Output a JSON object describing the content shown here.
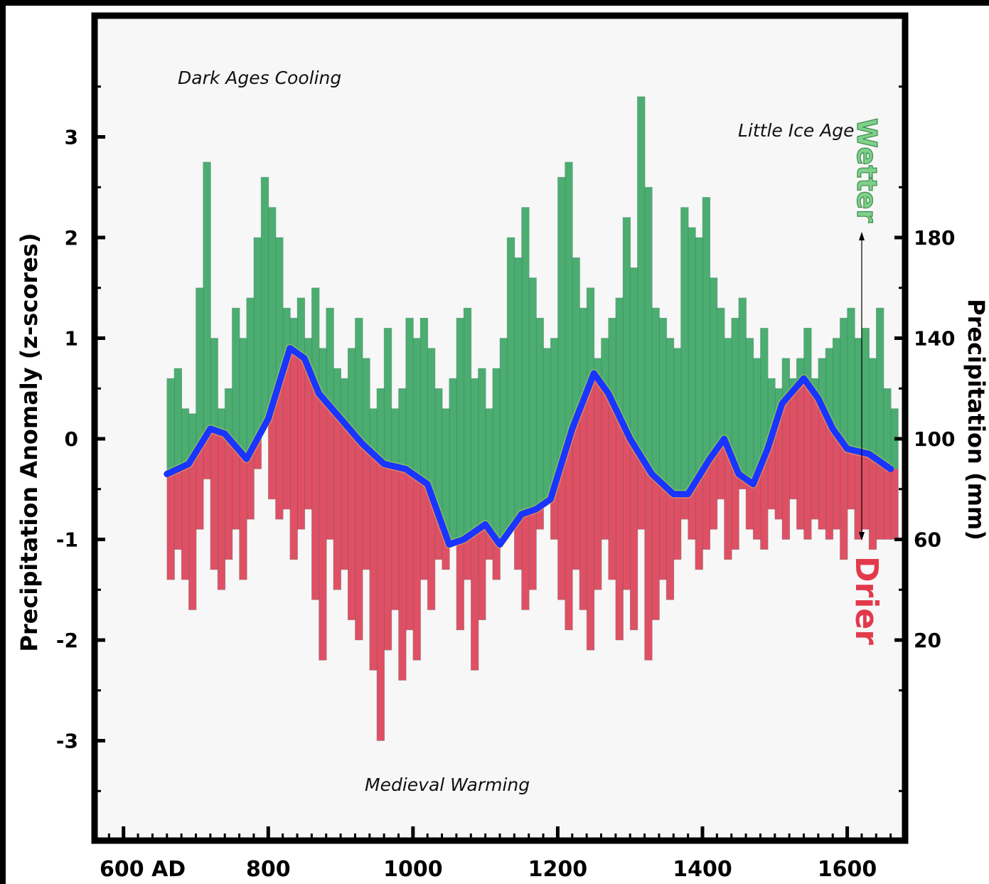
{
  "chart_data": {
    "type": "bar",
    "title": "",
    "y_left_label": "Precipitation Anomaly (z-scores)",
    "y_right_label": "Precipitation (mm)",
    "ylim": [
      -4,
      4
    ],
    "xlim": [
      560,
      1680
    ],
    "x_ticks": [
      600,
      800,
      1000,
      1200,
      1400,
      1600
    ],
    "x_tick_labels": [
      "600  AD",
      "800",
      "1000",
      "1200",
      "1400",
      "1600"
    ],
    "y_ticks": [
      3,
      2,
      1,
      0,
      -1,
      -2,
      -3
    ],
    "y_tick_labels": [
      "3",
      "2",
      "1",
      "0",
      "-1",
      "-2",
      "-3"
    ],
    "y_right_ticks": [
      2,
      1,
      0,
      -1,
      -2
    ],
    "y_right_tick_labels": [
      "180",
      "140",
      "100",
      "60",
      "20"
    ],
    "annotations": {
      "dark_ages": "Dark Ages Cooling",
      "little_ice_age": "Little Ice Age",
      "medieval": "Medieval Warming",
      "wetter": "Wetter",
      "drier": "Drier"
    },
    "series_smoothed": {
      "x": [
        660,
        690,
        720,
        740,
        770,
        800,
        830,
        850,
        870,
        900,
        930,
        960,
        990,
        1020,
        1050,
        1070,
        1100,
        1120,
        1150,
        1170,
        1190,
        1220,
        1250,
        1270,
        1300,
        1330,
        1360,
        1380,
        1410,
        1430,
        1450,
        1470,
        1490,
        1510,
        1540,
        1560,
        1580,
        1600,
        1630,
        1660
      ],
      "values": [
        -0.35,
        -0.25,
        0.1,
        0.05,
        -0.2,
        0.2,
        0.9,
        0.8,
        0.45,
        0.2,
        -0.05,
        -0.25,
        -0.3,
        -0.45,
        -1.05,
        -1.0,
        -0.85,
        -1.05,
        -0.75,
        -0.7,
        -0.6,
        0.1,
        0.65,
        0.45,
        0.0,
        -0.35,
        -0.55,
        -0.55,
        -0.2,
        0.0,
        -0.35,
        -0.45,
        -0.1,
        0.35,
        0.6,
        0.4,
        0.1,
        -0.1,
        -0.15,
        -0.3
      ]
    },
    "series_annual": {
      "x": [
        660,
        670,
        680,
        690,
        700,
        710,
        720,
        730,
        740,
        750,
        760,
        770,
        780,
        790,
        800,
        810,
        820,
        830,
        840,
        850,
        860,
        870,
        880,
        890,
        900,
        910,
        920,
        930,
        940,
        950,
        960,
        970,
        980,
        990,
        1000,
        1010,
        1020,
        1030,
        1040,
        1050,
        1060,
        1070,
        1080,
        1090,
        1100,
        1110,
        1120,
        1130,
        1140,
        1150,
        1160,
        1170,
        1180,
        1190,
        1200,
        1210,
        1220,
        1230,
        1240,
        1250,
        1260,
        1270,
        1280,
        1290,
        1300,
        1310,
        1320,
        1330,
        1340,
        1350,
        1360,
        1370,
        1380,
        1390,
        1400,
        1410,
        1420,
        1430,
        1440,
        1450,
        1460,
        1470,
        1480,
        1490,
        1500,
        1510,
        1520,
        1530,
        1540,
        1550,
        1560,
        1570,
        1580,
        1590,
        1600,
        1610,
        1620,
        1630,
        1640,
        1650,
        1660
      ],
      "high": [
        0.6,
        0.7,
        0.3,
        0.25,
        1.5,
        2.75,
        1.0,
        0.3,
        0.5,
        1.3,
        1.0,
        1.4,
        2.0,
        2.6,
        2.3,
        2.0,
        1.3,
        1.2,
        1.4,
        1.0,
        1.5,
        0.9,
        1.3,
        0.7,
        0.6,
        0.9,
        1.2,
        0.8,
        0.3,
        0.5,
        1.1,
        0.3,
        0.5,
        1.2,
        1.0,
        1.2,
        0.9,
        0.5,
        0.3,
        0.6,
        1.2,
        1.3,
        0.6,
        0.7,
        0.3,
        0.7,
        1.0,
        2.0,
        1.8,
        2.3,
        1.6,
        1.2,
        0.9,
        1.0,
        2.6,
        2.75,
        1.8,
        1.3,
        1.5,
        0.8,
        1.0,
        1.2,
        1.4,
        2.2,
        1.7,
        3.4,
        2.5,
        1.3,
        1.2,
        1.0,
        0.9,
        2.3,
        2.1,
        2.0,
        2.4,
        1.6,
        1.3,
        1.0,
        1.2,
        1.4,
        1.0,
        0.8,
        1.1,
        0.6,
        0.5,
        0.8,
        0.6,
        0.8,
        1.1,
        0.6,
        0.8,
        0.9,
        1.0,
        1.2,
        1.3,
        1.0,
        1.1,
        0.8,
        1.3,
        0.5,
        0.3
      ],
      "low": [
        -1.4,
        -1.1,
        -1.4,
        -1.7,
        -0.9,
        -0.4,
        -1.3,
        -1.5,
        -1.2,
        -0.9,
        -1.4,
        -0.8,
        -0.3,
        0.2,
        -0.6,
        -0.8,
        -0.7,
        -1.2,
        -0.9,
        -0.7,
        -1.6,
        -2.2,
        -1.0,
        -1.5,
        -1.3,
        -1.8,
        -2.0,
        -1.3,
        -2.3,
        -3.0,
        -2.1,
        -1.7,
        -2.4,
        -1.9,
        -2.2,
        -1.4,
        -1.7,
        -1.2,
        -1.3,
        -0.8,
        -1.9,
        -1.4,
        -2.3,
        -1.8,
        -1.2,
        -1.4,
        -1.0,
        -0.6,
        -1.3,
        -1.7,
        -1.5,
        -0.9,
        -0.6,
        -1.0,
        -1.6,
        -1.9,
        -1.3,
        -1.7,
        -2.1,
        -1.5,
        -1.0,
        -1.4,
        -2.0,
        -1.5,
        -1.9,
        -0.9,
        -2.2,
        -1.8,
        -1.4,
        -1.6,
        -1.2,
        -0.8,
        -1.0,
        -1.3,
        -1.1,
        -0.9,
        -0.6,
        -1.2,
        -1.1,
        -0.5,
        -0.9,
        -1.0,
        -1.1,
        -0.7,
        -0.8,
        -1.0,
        -0.6,
        -0.9,
        -1.0,
        -0.8,
        -0.9,
        -1.0,
        -0.9,
        -1.2,
        -0.7,
        -1.0,
        -0.9,
        -1.1,
        -1.0,
        -1.0,
        -1.0
      ]
    },
    "grid": false,
    "legend": "none",
    "colors": {
      "wet": "#1f9a4e",
      "dry": "#d8253e",
      "smoothed": "#1a35ff",
      "background": "#f7f7f7",
      "frame": "#000000"
    }
  }
}
